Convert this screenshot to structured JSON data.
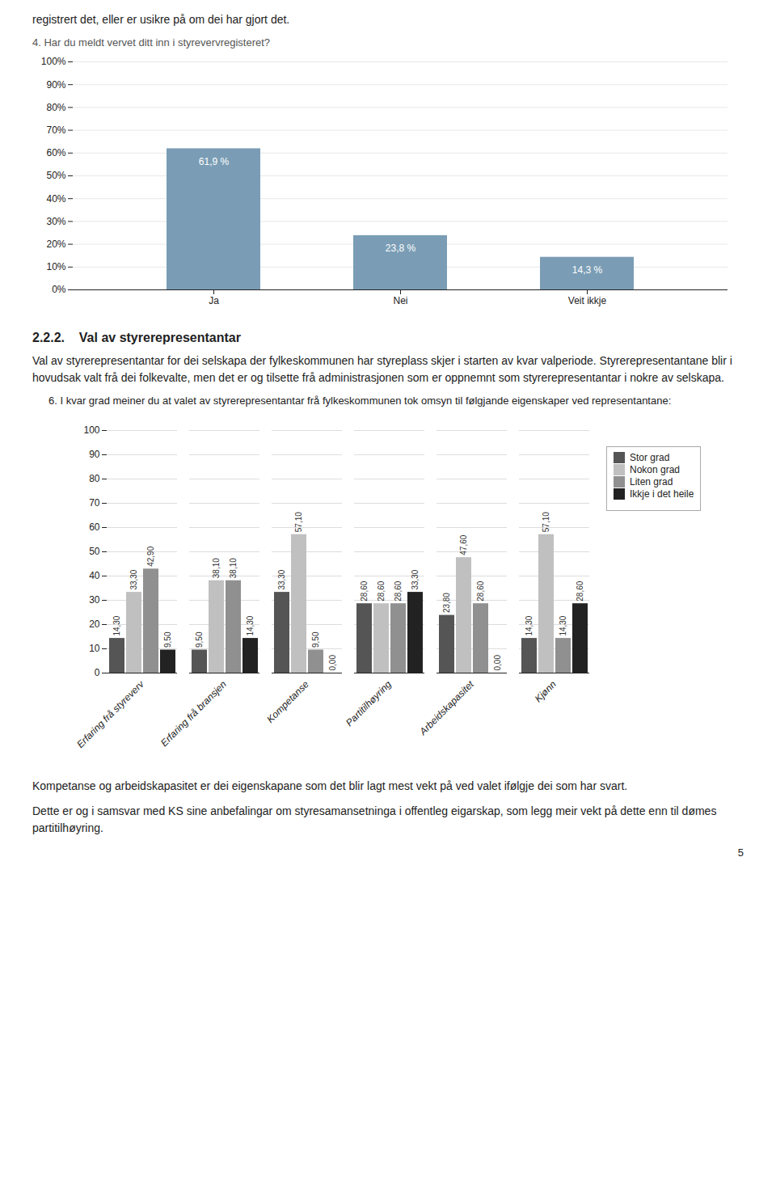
{
  "annotations": [
    "registrert det, eller er usikre på om dei har gjort det.",
    "2.2.2.    Val av styrerepresentantar",
    "Val av styrerepresentantar for dei selskapa der fylkeskommunen har styreplass skjer i starten av kvar valperiode. Styrerepresentantane blir i hovudsak valt frå dei folkevalte, men det er og tilsette frå administrasjonen som er oppnemnt som styrerepresentantar i nokre av selskapa.",
    "6. I kvar grad meiner du at valet av styrerepresentantar frå fylkeskommunen tok omsyn til følgjande eigenskaper ved representantane:",
    "Kompetanse og arbeidskapasitet er dei eigenskapane som det blir lagt mest vekt på ved valet ifølgje dei som har svart.",
    "Dette er og i samsvar med KS sine anbefalingar om styresamansetninga i offentleg eigarskap, som legg meir vekt på dette enn til dømes partitilhøyring.",
    "5"
  ],
  "chart_data": [
    {
      "type": "bar",
      "title": "4. Har du meldt vervet ditt inn i styrevervregisteret?",
      "categories": [
        "Ja",
        "Nei",
        "Veit ikkje"
      ],
      "values": [
        61.9,
        23.8,
        14.3
      ],
      "value_labels": [
        "61,9 %",
        "23,8 %",
        "14,3 %"
      ],
      "data_labels": true,
      "color": "#7a9db5",
      "ylim": [
        0,
        100
      ],
      "yticks": [
        {
          "value": 0,
          "label": "0%"
        },
        {
          "value": 10,
          "label": "10%"
        },
        {
          "value": 20,
          "label": "20%"
        },
        {
          "value": 30,
          "label": "30%"
        },
        {
          "value": 40,
          "label": "40%"
        },
        {
          "value": 50,
          "label": "50%"
        },
        {
          "value": 60,
          "label": "60%"
        },
        {
          "value": 70,
          "label": "70%"
        },
        {
          "value": 80,
          "label": "80%"
        },
        {
          "value": 90,
          "label": "90%"
        },
        {
          "value": 100,
          "label": "100%"
        }
      ],
      "grid": true
    },
    {
      "type": "bar",
      "categories": [
        "Erfaring frå styreverv",
        "Erfaring frå bransjen",
        "Kompetanse",
        "Partitilhøyring",
        "Arbeidskapasitet",
        "Kjønn"
      ],
      "series": [
        {
          "name": "Stor grad",
          "color": "#555555",
          "values": [
            14.3,
            9.5,
            33.3,
            28.6,
            23.8,
            14.3
          ],
          "value_labels": [
            "14,30",
            "9,50",
            "33,30",
            "28,60",
            "23,80",
            "14,30"
          ]
        },
        {
          "name": "Nokon grad",
          "color": "#c0c0c0",
          "values": [
            33.3,
            38.1,
            57.1,
            28.6,
            47.6,
            57.1
          ],
          "value_labels": [
            "33,30",
            "38,10",
            "57,10",
            "28,60",
            "47,60",
            "57,10"
          ]
        },
        {
          "name": "Liten grad",
          "color": "#909090",
          "values": [
            42.9,
            38.1,
            9.5,
            28.6,
            28.6,
            14.3
          ],
          "value_labels": [
            "42,90",
            "38,10",
            "9,50",
            "28,60",
            "28,60",
            "14,30"
          ]
        },
        {
          "name": "Ikkje i det heile",
          "color": "#222222",
          "values": [
            9.5,
            14.3,
            0.0,
            33.3,
            0.0,
            28.6
          ],
          "value_labels": [
            "9,50",
            "14,30",
            "0,00",
            "33,30",
            "0,00",
            "28,60"
          ]
        }
      ],
      "data_labels": true,
      "ylim": [
        0,
        100
      ],
      "yticks": [
        0,
        10,
        20,
        30,
        40,
        50,
        60,
        70,
        80,
        90,
        100
      ],
      "grid": true,
      "legend": "right"
    }
  ]
}
